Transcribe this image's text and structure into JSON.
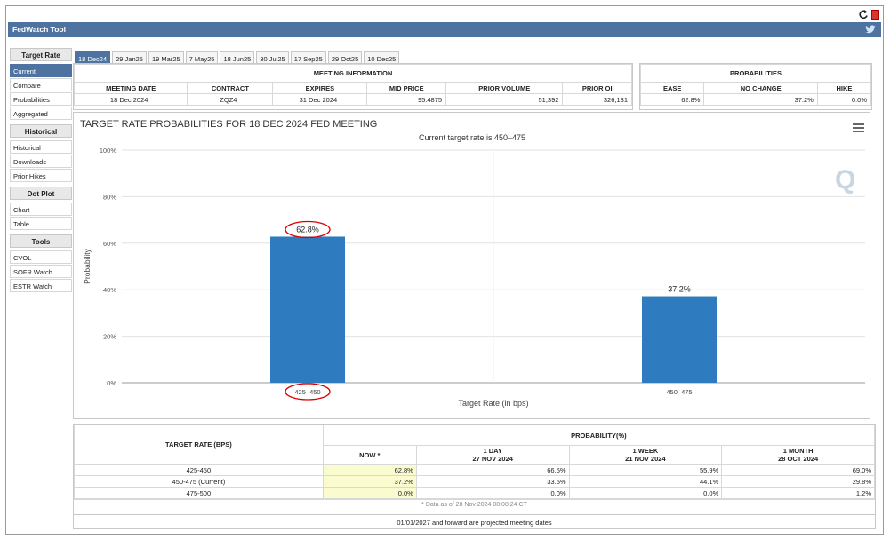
{
  "app": {
    "title": "FedWatch Tool"
  },
  "icons": {
    "refresh": "refresh-icon",
    "pdf": "pdf-icon",
    "twitter": "twitter-icon",
    "menu": "hamburger-menu-icon",
    "watermark": "q-logo-watermark"
  },
  "sidebar": {
    "sections": [
      {
        "heading": "Target Rate",
        "items": [
          "Current",
          "Compare",
          "Probabilities",
          "Aggregated"
        ]
      },
      {
        "heading": "Historical",
        "items": [
          "Historical",
          "Downloads",
          "Prior Hikes"
        ]
      },
      {
        "heading": "Dot Plot",
        "items": [
          "Chart",
          "Table"
        ]
      },
      {
        "heading": "Tools",
        "items": [
          "CVOL",
          "SOFR Watch",
          "ESTR Watch"
        ]
      }
    ],
    "active_item": "Current"
  },
  "tabs": [
    "18 Dec24",
    "29 Jan25",
    "19 Mar25",
    "7 May25",
    "18 Jun25",
    "30 Jul25",
    "17 Sep25",
    "29 Oct25",
    "10 Dec25"
  ],
  "active_tab": "18 Dec24",
  "meeting_info": {
    "heading": "MEETING INFORMATION",
    "columns": [
      "MEETING DATE",
      "CONTRACT",
      "EXPIRES",
      "MID PRICE",
      "PRIOR VOLUME",
      "PRIOR OI"
    ],
    "row": [
      "18 Dec 2024",
      "ZQZ4",
      "31 Dec 2024",
      "95.4875",
      "51,392",
      "326,131"
    ]
  },
  "probabilities": {
    "heading": "PROBABILITIES",
    "columns": [
      "EASE",
      "NO CHANGE",
      "HIKE"
    ],
    "row": [
      "62.8%",
      "37.2%",
      "0.0%"
    ]
  },
  "chart_data": {
    "type": "bar",
    "title": "TARGET RATE PROBABILITIES FOR 18 DEC 2024 FED MEETING",
    "subtitle": "Current target rate is 450–475",
    "xlabel": "Target Rate (in bps)",
    "ylabel": "Probability",
    "categories": [
      "425–450",
      "450–475"
    ],
    "values": [
      62.8,
      37.2
    ],
    "data_labels": [
      "62.8%",
      "37.2%"
    ],
    "ylim": [
      0,
      100
    ],
    "yticks": [
      "0%",
      "20%",
      "40%",
      "60%",
      "80%",
      "100%"
    ],
    "bar_color": "#2e7bbf",
    "grid": true,
    "highlight_color": "#dd0000"
  },
  "prob_table": {
    "rate_header": "TARGET RATE (BPS)",
    "prob_header": "PROBABILITY(%)",
    "columns": [
      {
        "l1": "NOW *",
        "l2": ""
      },
      {
        "l1": "1 DAY",
        "l2": "27 NOV 2024"
      },
      {
        "l1": "1 WEEK",
        "l2": "21 NOV 2024"
      },
      {
        "l1": "1 MONTH",
        "l2": "28 OCT 2024"
      }
    ],
    "rows": [
      {
        "rate": "425-450",
        "values": [
          "62.8%",
          "66.5%",
          "55.9%",
          "69.0%"
        ]
      },
      {
        "rate": "450-475 (Current)",
        "values": [
          "37.2%",
          "33.5%",
          "44.1%",
          "29.8%"
        ]
      },
      {
        "rate": "475-500",
        "values": [
          "0.0%",
          "0.0%",
          "0.0%",
          "1.2%"
        ]
      }
    ],
    "data_note": "* Data as of 28 Nov 2024 08:08:24 CT"
  },
  "footer": {
    "note": "01/01/2027 and forward are projected meeting dates"
  },
  "colors": {
    "header_blue": "#4e73a0",
    "now_highlight": "#fbfbd0"
  }
}
